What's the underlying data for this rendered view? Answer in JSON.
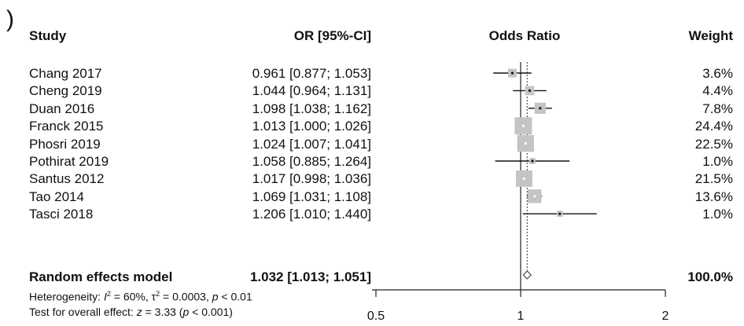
{
  "panel_label": ")",
  "chart_data": {
    "type": "forest",
    "headers": {
      "study": "Study",
      "estimate": "OR [95%-CI]",
      "plot": "Odds Ratio",
      "weight": "Weight"
    },
    "studies": [
      {
        "study": "Chang 2017",
        "or": 0.961,
        "lower": 0.877,
        "upper": 1.053,
        "ci_text": "0.961 [0.877; 1.053]",
        "weight": 3.6,
        "weight_text": "3.6%"
      },
      {
        "study": "Cheng 2019",
        "or": 1.044,
        "lower": 0.964,
        "upper": 1.131,
        "ci_text": "1.044 [0.964; 1.131]",
        "weight": 4.4,
        "weight_text": "4.4%"
      },
      {
        "study": "Duan 2016",
        "or": 1.098,
        "lower": 1.038,
        "upper": 1.162,
        "ci_text": "1.098 [1.038; 1.162]",
        "weight": 7.8,
        "weight_text": "7.8%"
      },
      {
        "study": "Franck 2015",
        "or": 1.013,
        "lower": 1.0,
        "upper": 1.026,
        "ci_text": "1.013 [1.000; 1.026]",
        "weight": 24.4,
        "weight_text": "24.4%"
      },
      {
        "study": "Phosri 2019",
        "or": 1.024,
        "lower": 1.007,
        "upper": 1.041,
        "ci_text": "1.024 [1.007; 1.041]",
        "weight": 22.5,
        "weight_text": "22.5%"
      },
      {
        "study": "Pothirat 2019",
        "or": 1.058,
        "lower": 0.885,
        "upper": 1.264,
        "ci_text": "1.058 [0.885; 1.264]",
        "weight": 1.0,
        "weight_text": "1.0%"
      },
      {
        "study": "Santus 2012",
        "or": 1.017,
        "lower": 0.998,
        "upper": 1.036,
        "ci_text": "1.017 [0.998; 1.036]",
        "weight": 21.5,
        "weight_text": "21.5%"
      },
      {
        "study": "Tao 2014",
        "or": 1.069,
        "lower": 1.031,
        "upper": 1.108,
        "ci_text": "1.069 [1.031; 1.108]",
        "weight": 13.6,
        "weight_text": "13.6%"
      },
      {
        "study": "Tasci 2018",
        "or": 1.206,
        "lower": 1.01,
        "upper": 1.44,
        "ci_text": "1.206 [1.010; 1.440]",
        "weight": 1.0,
        "weight_text": "1.0%"
      }
    ],
    "summary": {
      "label": "Random effects model",
      "or": 1.032,
      "lower": 1.013,
      "upper": 1.051,
      "ci_text": "1.032 [1.013; 1.051]",
      "weight_text": "100.0%"
    },
    "heterogeneity": {
      "prefix": "Heterogeneity: ",
      "i2_symbol": "I",
      "i2_value": " = 60%, ",
      "tau2_symbol": "τ",
      "tau2_value": " = 0.0003, ",
      "p_symbol": "p",
      "p_value": " < 0.01"
    },
    "overall_test": {
      "prefix": "Test for overall effect: ",
      "z_symbol": "z",
      "z_value": " = 3.33 (",
      "p_symbol": "p",
      "p_value": " < 0.001)"
    },
    "x_axis": {
      "scale": "log",
      "ticks": [
        0.5,
        1,
        2
      ],
      "tick_labels": [
        "0.5",
        "1",
        "2"
      ],
      "reference_line": 1
    },
    "colors": {
      "box": "#c4c4c4",
      "line": "#111111",
      "summary_line": "#555555"
    }
  }
}
